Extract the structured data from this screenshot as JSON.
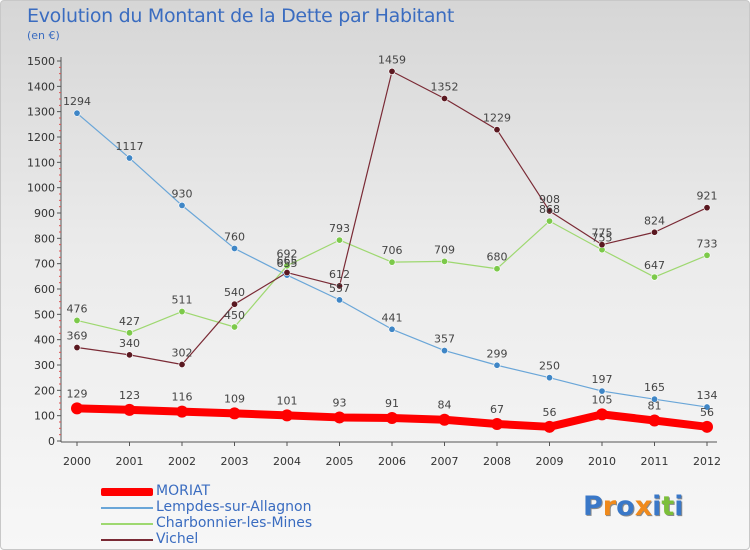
{
  "title": "Evolution du Montant de la Dette par Habitant",
  "unit": "(en €)",
  "brand": {
    "name": "Proxiti"
  },
  "chart_data": {
    "type": "line",
    "title": "Evolution du Montant de la Dette par Habitant",
    "ylabel": "(en €)",
    "xlabel": "",
    "ylim": [
      0,
      1500
    ],
    "yticks": [
      0,
      100,
      200,
      300,
      400,
      500,
      600,
      700,
      800,
      900,
      1000,
      1100,
      1200,
      1300,
      1400,
      1500
    ],
    "grid": false,
    "legend_position": "bottom-left",
    "x": [
      "2000",
      "2001",
      "2002",
      "2003",
      "2004",
      "2005",
      "2006",
      "2007",
      "2008",
      "2009",
      "2010",
      "2011",
      "2012"
    ],
    "series": [
      {
        "name": "MORIAT",
        "color": "#ff0000",
        "values": [
          129,
          123,
          116,
          109,
          101,
          93,
          91,
          84,
          67,
          56,
          105,
          81,
          56
        ]
      },
      {
        "name": "Lempdes-sur-Allagnon",
        "color": "#6aa6d8",
        "values": [
          1294,
          1117,
          930,
          760,
          655,
          557,
          441,
          357,
          299,
          250,
          197,
          165,
          134
        ]
      },
      {
        "name": "Charbonnier-les-Mines",
        "color": "#9ed870",
        "values": [
          476,
          427,
          511,
          450,
          692,
          793,
          706,
          709,
          680,
          868,
          755,
          647,
          733
        ]
      },
      {
        "name": "Vichel",
        "color": "#7a2a35",
        "values": [
          369,
          340,
          302,
          540,
          665,
          612,
          1459,
          1352,
          1229,
          908,
          775,
          824,
          921
        ]
      }
    ]
  }
}
